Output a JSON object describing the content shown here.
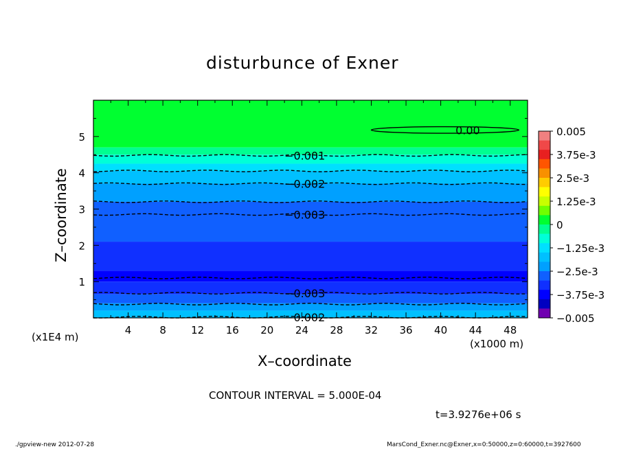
{
  "figure": {
    "title": "disturbunce of Exner",
    "x_axis_label": "X–coordinate",
    "y_axis_label": "Z–coordinate",
    "y_scale_note": "(x1E4 m)",
    "x_scale_note": "(x1000 m)",
    "contour_interval": "CONTOUR INTERVAL = 5.000E-04",
    "time_label": "t=3.9276e+06 s",
    "footer_left": "./gpview-new  2012-07-28",
    "footer_right": "MarsCond_Exner.nc@Exner,x=0:50000,z=0:60000,t=3927600"
  },
  "chart_data": {
    "type": "heatmap",
    "title": "disturbunce of Exner",
    "xlabel": "X–coordinate",
    "ylabel": "Z–coordinate",
    "xlim": [
      0,
      50
    ],
    "ylim": [
      0,
      6
    ],
    "x_ticks": [
      "4",
      "8",
      "12",
      "16",
      "20",
      "24",
      "28",
      "32",
      "36",
      "40",
      "44",
      "48"
    ],
    "x_tick_values": [
      4,
      8,
      12,
      16,
      20,
      24,
      28,
      32,
      36,
      40,
      44,
      48
    ],
    "y_ticks": [
      "1",
      "2",
      "3",
      "4",
      "5"
    ],
    "y_tick_values": [
      1,
      2,
      3,
      4,
      5
    ],
    "colorbar": {
      "labels": [
        "0.005",
        "3.75e-3",
        "2.5e-3",
        "1.25e-3",
        "0",
        "−1.25e-3",
        "−2.5e-3",
        "−3.75e-3",
        "−0.005"
      ],
      "label_values": [
        0.005,
        0.00375,
        0.0025,
        0.00125,
        0,
        -0.00125,
        -0.0025,
        -0.00375,
        -0.005
      ],
      "colors": [
        "#f08080",
        "#f04848",
        "#e82020",
        "#ff5500",
        "#f89000",
        "#ffcc00",
        "#ffff00",
        "#c8ff00",
        "#70ff00",
        "#00ff30",
        "#00ff90",
        "#00ffd8",
        "#00e0ff",
        "#00c0ff",
        "#00a0ff",
        "#1060ff",
        "#1030ff",
        "#0000ff",
        "#0000c0",
        "#7000b0"
      ]
    },
    "bands": [
      {
        "z_top": 6.0,
        "z_bottom": 4.7,
        "color": "#00ff30"
      },
      {
        "z_top": 4.7,
        "z_bottom": 4.5,
        "color": "#00ff90"
      },
      {
        "z_top": 4.5,
        "z_bottom": 4.25,
        "color": "#00ffd8"
      },
      {
        "z_top": 4.25,
        "z_bottom": 4.05,
        "color": "#00e0ff"
      },
      {
        "z_top": 4.05,
        "z_bottom": 3.7,
        "color": "#00c0ff"
      },
      {
        "z_top": 3.7,
        "z_bottom": 3.2,
        "color": "#00a0ff"
      },
      {
        "z_top": 3.2,
        "z_bottom": 2.1,
        "color": "#1060ff"
      },
      {
        "z_top": 2.1,
        "z_bottom": 1.3,
        "color": "#1030ff"
      },
      {
        "z_top": 1.3,
        "z_bottom": 1.0,
        "color": "#0000ff"
      },
      {
        "z_top": 1.0,
        "z_bottom": 0.65,
        "color": "#1030ff"
      },
      {
        "z_top": 0.65,
        "z_bottom": 0.4,
        "color": "#1060ff"
      },
      {
        "z_top": 0.4,
        "z_bottom": 0.2,
        "color": "#00a0ff"
      },
      {
        "z_top": 0.2,
        "z_bottom": 0.0,
        "color": "#00c0ff"
      }
    ],
    "contours": [
      {
        "level": "-0.001",
        "z": 4.48,
        "label": true,
        "label_x": 22
      },
      {
        "level": "-0.0015",
        "z": 4.05,
        "label": false
      },
      {
        "level": "-0.002",
        "z": 3.7,
        "label": true,
        "label_x": 22
      },
      {
        "level": "-0.0025",
        "z": 3.2,
        "label": false
      },
      {
        "level": "-0.003",
        "z": 2.85,
        "label": true,
        "label_x": 22
      },
      {
        "level": "-0.0035",
        "z": 1.1,
        "label": false
      },
      {
        "level": "-0.003",
        "z": 0.68,
        "label": true,
        "label_x": 22
      },
      {
        "level": "-0.0025",
        "z": 0.38,
        "label": false
      },
      {
        "level": "-0.002",
        "z": 0.02,
        "label": true,
        "label_x": 22
      }
    ],
    "contour_labels": [
      "−0.001",
      "−0.002",
      "−0.003",
      "−0.003",
      "−0.002",
      "0.00"
    ],
    "zero_contour": {
      "level": "0.00",
      "x_center": 40.5,
      "z_center": 5.18,
      "x_halfwidth": 8.5,
      "z_halfwidth": 0.09
    }
  }
}
